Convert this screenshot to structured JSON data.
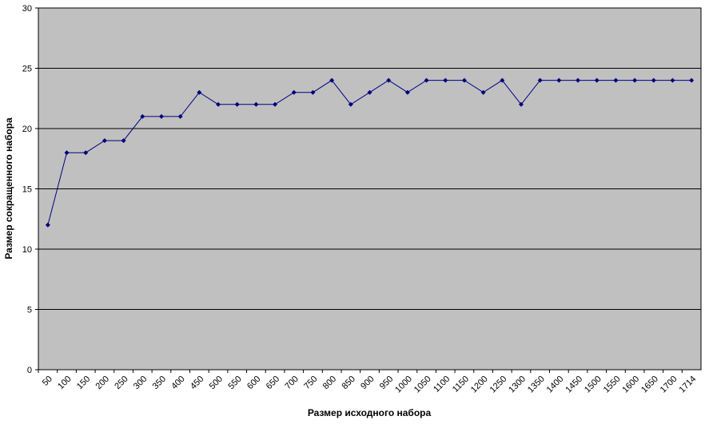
{
  "chart_data": {
    "type": "line",
    "x_label": "Размер исходного набора",
    "y_label": "Размер сокращенного набора",
    "categories": [
      "50",
      "100",
      "150",
      "200",
      "250",
      "300",
      "350",
      "400",
      "450",
      "500",
      "550",
      "600",
      "650",
      "700",
      "750",
      "800",
      "850",
      "900",
      "950",
      "1000",
      "1050",
      "1100",
      "1150",
      "1200",
      "1250",
      "1300",
      "1350",
      "1400",
      "1450",
      "1500",
      "1550",
      "1600",
      "1650",
      "1700",
      "1714"
    ],
    "values": [
      12,
      18,
      18,
      19,
      19,
      21,
      21,
      21,
      23,
      22,
      22,
      22,
      22,
      23,
      23,
      24,
      22,
      23,
      24,
      23,
      24,
      24,
      24,
      23,
      24,
      22,
      24,
      24,
      24,
      24,
      24,
      24,
      24,
      24,
      24
    ],
    "color": "#000080",
    "plot_background": "#c0c0c0",
    "ylim": [
      0,
      30
    ],
    "yticks": [
      0,
      5,
      10,
      15,
      20,
      25,
      30
    ],
    "grid": true
  }
}
